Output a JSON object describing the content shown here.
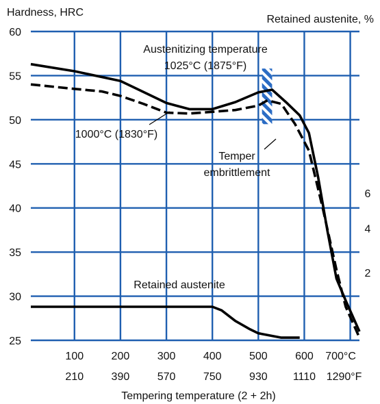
{
  "chart_data": {
    "type": "line",
    "title": "",
    "left_axis": {
      "label": "Hardness, HRC",
      "range": [
        25,
        60
      ],
      "ticks": [
        25,
        30,
        35,
        40,
        45,
        50,
        55,
        60
      ]
    },
    "right_axis": {
      "label": "Retained austenite, %",
      "ticks": [
        {
          "label": "2",
          "hrc_level": 32.7
        },
        {
          "label": "4",
          "hrc_level": 37.7
        },
        {
          "label": "6",
          "hrc_level": 41.7
        }
      ]
    },
    "x_axis": {
      "label": "Tempering temperature  (2 + 2h)",
      "range_celsius": [
        5,
        720
      ],
      "ticks_celsius": [
        100,
        200,
        300,
        400,
        500,
        600,
        700
      ],
      "tick_labels_celsius": [
        "100",
        "200",
        "300",
        "400",
        "500",
        "600",
        "700°C"
      ],
      "ticks_fahrenheit_pos": [
        100,
        200,
        300,
        400,
        500,
        600,
        700
      ],
      "tick_labels_fahrenheit": [
        "210",
        "390",
        "570",
        "750",
        "930",
        "1110",
        "1290°F"
      ]
    },
    "grid": true,
    "colors": {
      "grid": "#1f5fb0",
      "line": "#000000",
      "hatch": "#2b6cc4"
    },
    "series": [
      {
        "name": "Austenitizing temperature 1025°C (1875°F)",
        "style": "solid",
        "x": [
          5,
          100,
          200,
          300,
          350,
          400,
          450,
          500,
          530,
          560,
          590,
          610,
          630,
          650,
          670,
          690,
          720
        ],
        "y": [
          56.3,
          55.5,
          54.4,
          51.9,
          51.2,
          51.2,
          52.0,
          53.1,
          53.4,
          52.0,
          50.5,
          48.5,
          43.5,
          37.5,
          32.0,
          29.5,
          26.0
        ]
      },
      {
        "name": "1000°C (1830°F)",
        "style": "dashed",
        "x": [
          5,
          100,
          160,
          200,
          250,
          300,
          350,
          400,
          450,
          500,
          520,
          550,
          580,
          610,
          640,
          670,
          690,
          720
        ],
        "y": [
          54.0,
          53.5,
          53.2,
          52.7,
          51.8,
          50.8,
          50.7,
          50.9,
          51.1,
          51.6,
          52.2,
          51.8,
          49.5,
          46.5,
          40.0,
          33.0,
          28.8,
          25.3
        ]
      },
      {
        "name": "Retained austenite",
        "style": "solid",
        "x": [
          5,
          100,
          200,
          300,
          400,
          420,
          450,
          480,
          500,
          550,
          590
        ],
        "y": [
          28.8,
          28.8,
          28.8,
          28.8,
          28.8,
          28.4,
          27.2,
          26.3,
          25.8,
          25.3,
          25.3
        ]
      }
    ],
    "hatched_band": {
      "x_range": [
        508,
        530
      ],
      "y_range": [
        49.5,
        55.8
      ]
    },
    "annotations": [
      {
        "lines": [
          "Austenitizing temperature",
          "1025°C (1875°F)"
        ]
      },
      {
        "lines": [
          "1000°C (1830°F)"
        ]
      },
      {
        "lines": [
          "Temper",
          "embrittlement"
        ]
      },
      {
        "lines": [
          "Retained austenite"
        ]
      }
    ]
  }
}
